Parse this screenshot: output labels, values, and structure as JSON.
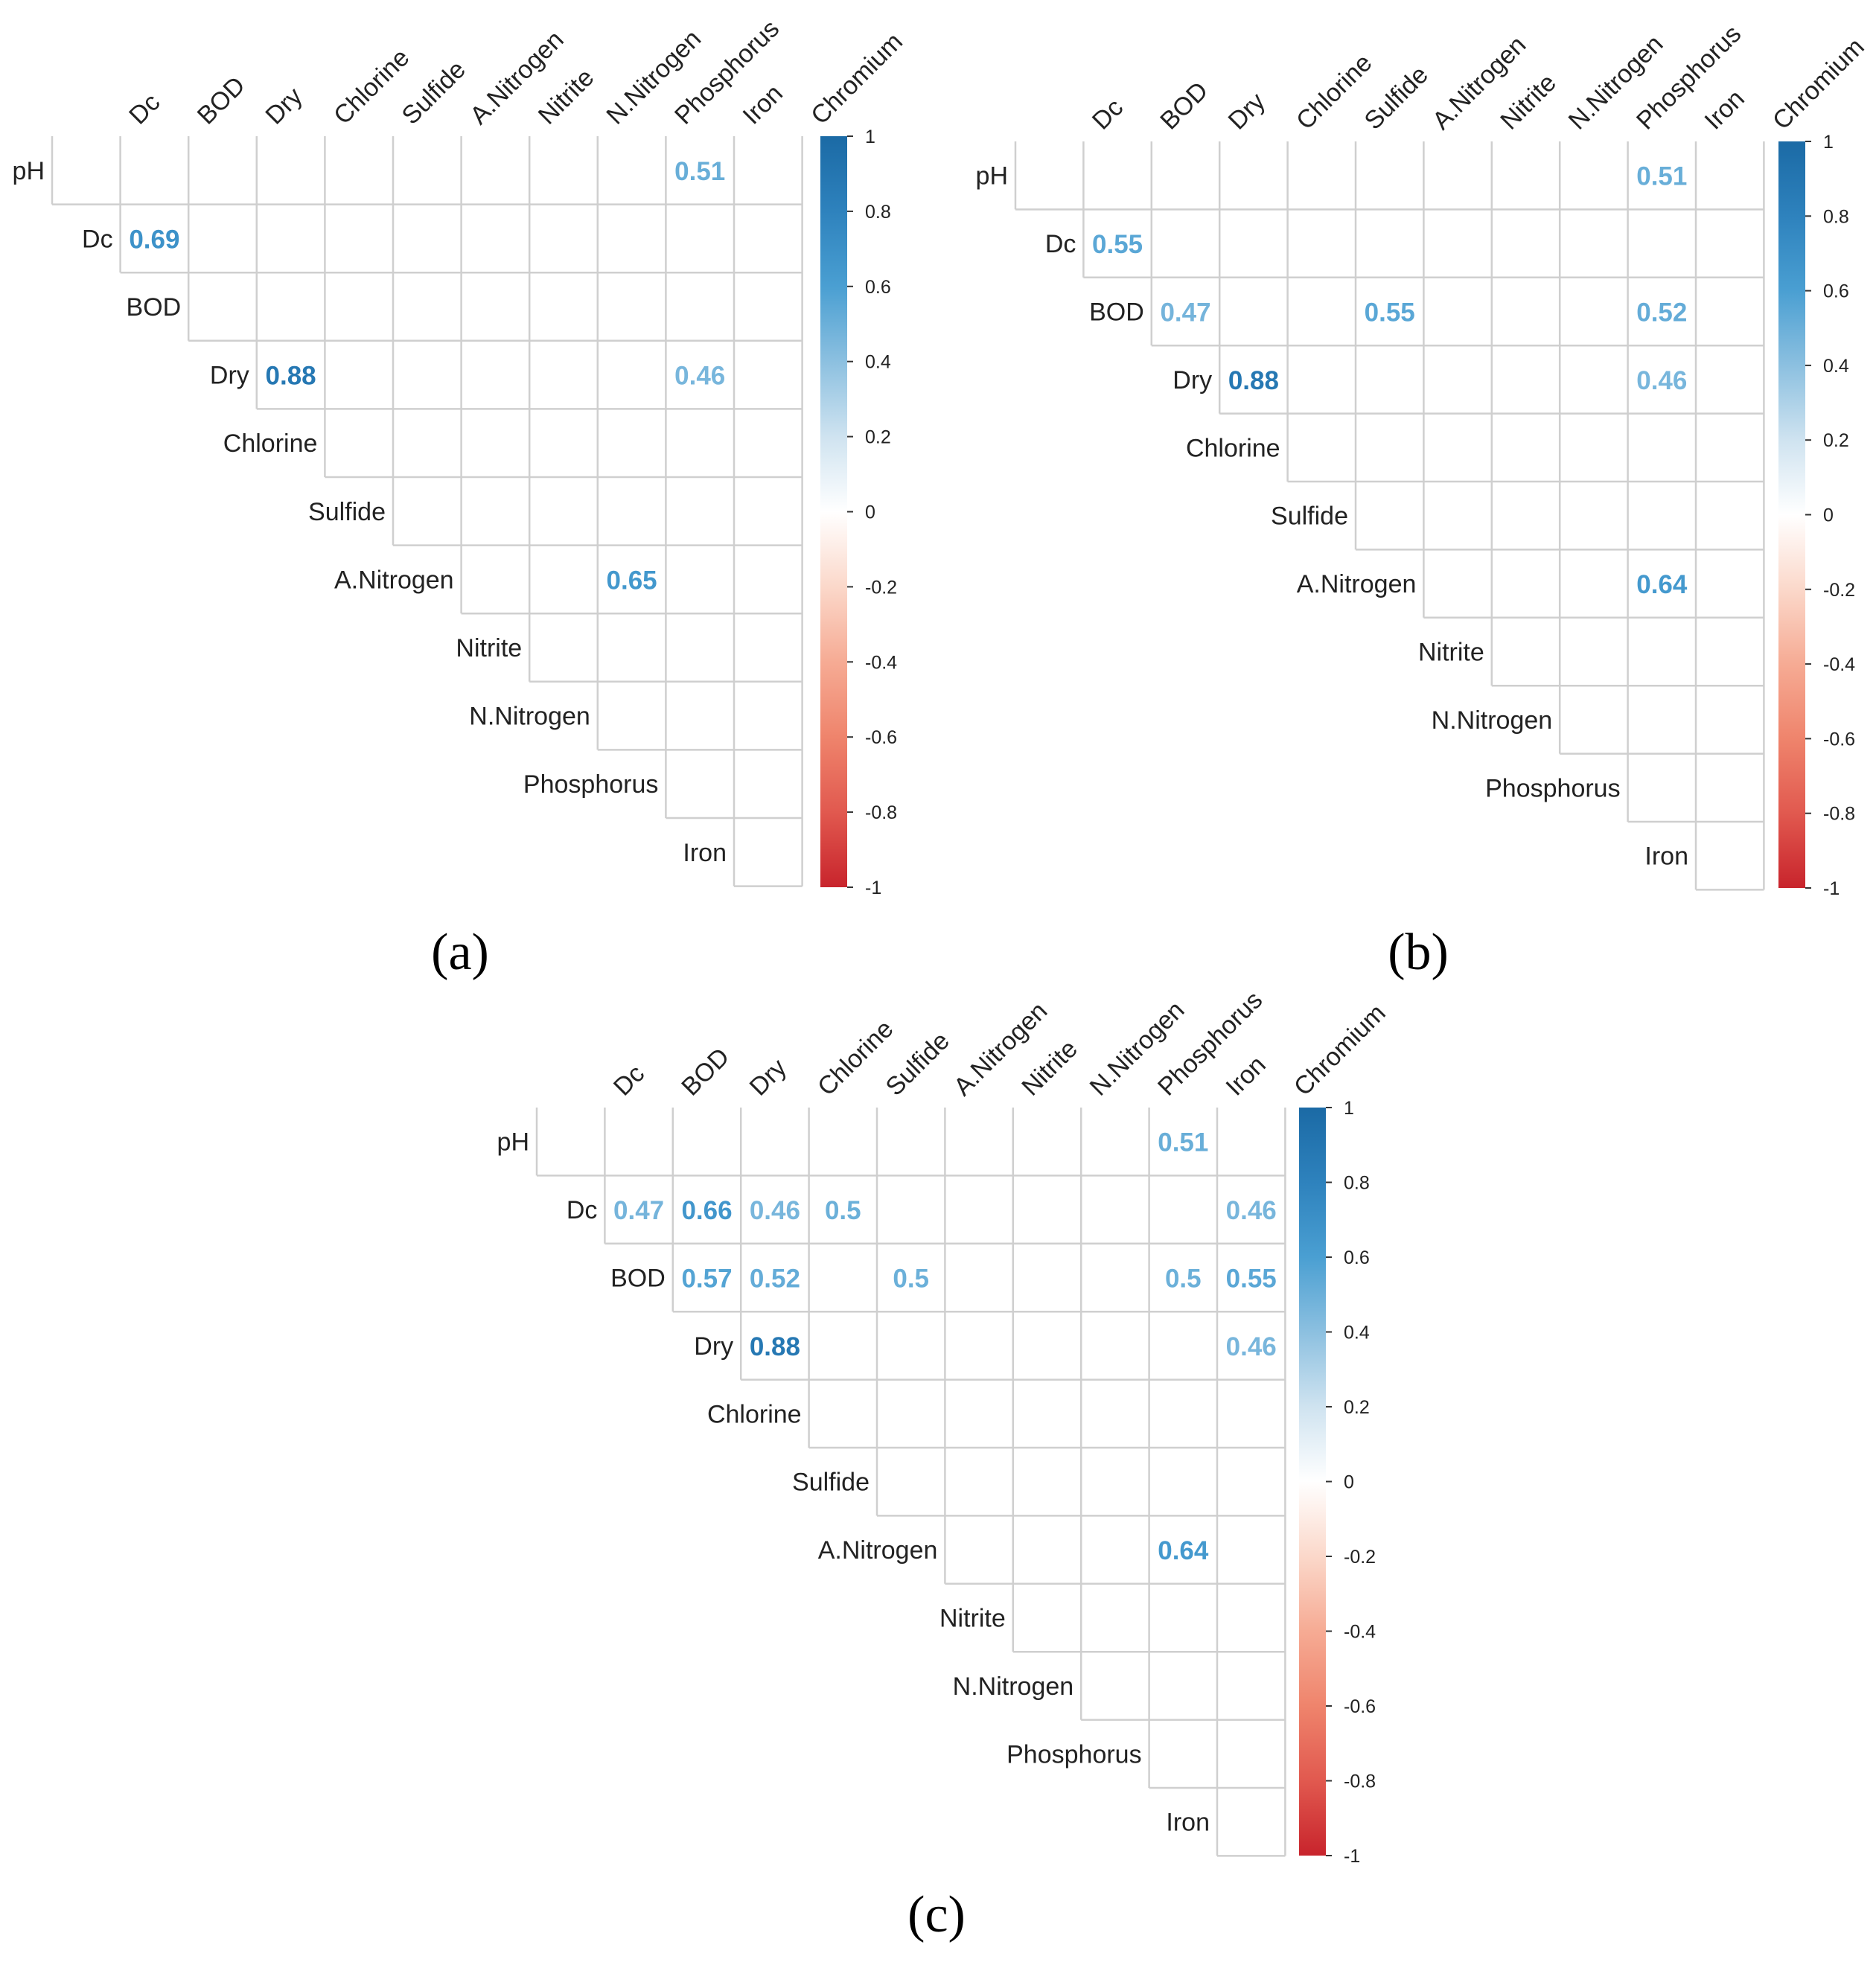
{
  "chart_data": [
    {
      "type": "heatmap",
      "panel_label": "(a)",
      "row_labels": [
        "pH",
        "Dc",
        "BOD",
        "Dry",
        "Chlorine",
        "Sulfide",
        "A.Nitrogen",
        "Nitrite",
        "N.Nitrogen",
        "Phosphorus",
        "Iron"
      ],
      "col_labels": [
        "Dc",
        "BOD",
        "Dry",
        "Chlorine",
        "Sulfide",
        "A.Nitrogen",
        "Nitrite",
        "N.Nitrogen",
        "Phosphorus",
        "Iron",
        "Chromium"
      ],
      "value_range": [
        -1,
        1
      ],
      "colorbar_ticks": [
        "1",
        "0.8",
        "0.6",
        "0.4",
        "0.2",
        "0",
        "-0.2",
        "-0.4",
        "-0.6",
        "-0.8",
        "-1"
      ],
      "cells": [
        {
          "row": 0,
          "col": 8,
          "value": 0.51,
          "label": "0.51"
        },
        {
          "row": 1,
          "col": 0,
          "value": 0.69,
          "label": "0.69"
        },
        {
          "row": 3,
          "col": 2,
          "value": 0.88,
          "label": "0.88"
        },
        {
          "row": 3,
          "col": 8,
          "value": 0.46,
          "label": "0.46"
        },
        {
          "row": 6,
          "col": 7,
          "value": 0.65,
          "label": "0.65"
        }
      ]
    },
    {
      "type": "heatmap",
      "panel_label": "(b)",
      "row_labels": [
        "pH",
        "Dc",
        "BOD",
        "Dry",
        "Chlorine",
        "Sulfide",
        "A.Nitrogen",
        "Nitrite",
        "N.Nitrogen",
        "Phosphorus",
        "Iron"
      ],
      "col_labels": [
        "Dc",
        "BOD",
        "Dry",
        "Chlorine",
        "Sulfide",
        "A.Nitrogen",
        "Nitrite",
        "N.Nitrogen",
        "Phosphorus",
        "Iron",
        "Chromium"
      ],
      "value_range": [
        -1,
        1
      ],
      "colorbar_ticks": [
        "1",
        "0.8",
        "0.6",
        "0.4",
        "0.2",
        "0",
        "-0.2",
        "-0.4",
        "-0.6",
        "-0.8",
        "-1"
      ],
      "cells": [
        {
          "row": 0,
          "col": 8,
          "value": 0.51,
          "label": "0.51"
        },
        {
          "row": 1,
          "col": 0,
          "value": 0.55,
          "label": "0.55"
        },
        {
          "row": 2,
          "col": 1,
          "value": 0.47,
          "label": "0.47"
        },
        {
          "row": 2,
          "col": 4,
          "value": 0.55,
          "label": "0.55"
        },
        {
          "row": 2,
          "col": 8,
          "value": 0.52,
          "label": "0.52"
        },
        {
          "row": 3,
          "col": 2,
          "value": 0.88,
          "label": "0.88"
        },
        {
          "row": 3,
          "col": 8,
          "value": 0.46,
          "label": "0.46"
        },
        {
          "row": 6,
          "col": 8,
          "value": 0.64,
          "label": "0.64"
        }
      ]
    },
    {
      "type": "heatmap",
      "panel_label": "(c)",
      "row_labels": [
        "pH",
        "Dc",
        "BOD",
        "Dry",
        "Chlorine",
        "Sulfide",
        "A.Nitrogen",
        "Nitrite",
        "N.Nitrogen",
        "Phosphorus",
        "Iron"
      ],
      "col_labels": [
        "Dc",
        "BOD",
        "Dry",
        "Chlorine",
        "Sulfide",
        "A.Nitrogen",
        "Nitrite",
        "N.Nitrogen",
        "Phosphorus",
        "Iron",
        "Chromium"
      ],
      "value_range": [
        -1,
        1
      ],
      "colorbar_ticks": [
        "1",
        "0.8",
        "0.6",
        "0.4",
        "0.2",
        "0",
        "-0.2",
        "-0.4",
        "-0.6",
        "-0.8",
        "-1"
      ],
      "cells": [
        {
          "row": 0,
          "col": 8,
          "value": 0.51,
          "label": "0.51"
        },
        {
          "row": 1,
          "col": 0,
          "value": 0.47,
          "label": "0.47"
        },
        {
          "row": 1,
          "col": 1,
          "value": 0.66,
          "label": "0.66"
        },
        {
          "row": 1,
          "col": 2,
          "value": 0.46,
          "label": "0.46"
        },
        {
          "row": 1,
          "col": 3,
          "value": 0.5,
          "label": "0.5"
        },
        {
          "row": 1,
          "col": 9,
          "value": 0.46,
          "label": "0.46"
        },
        {
          "row": 2,
          "col": 1,
          "value": 0.57,
          "label": "0.57"
        },
        {
          "row": 2,
          "col": 2,
          "value": 0.52,
          "label": "0.52"
        },
        {
          "row": 2,
          "col": 4,
          "value": 0.5,
          "label": "0.5"
        },
        {
          "row": 2,
          "col": 8,
          "value": 0.5,
          "label": "0.5"
        },
        {
          "row": 2,
          "col": 9,
          "value": 0.55,
          "label": "0.55"
        },
        {
          "row": 3,
          "col": 2,
          "value": 0.88,
          "label": "0.88"
        },
        {
          "row": 3,
          "col": 9,
          "value": 0.46,
          "label": "0.46"
        },
        {
          "row": 6,
          "col": 8,
          "value": 0.64,
          "label": "0.64"
        }
      ]
    }
  ]
}
